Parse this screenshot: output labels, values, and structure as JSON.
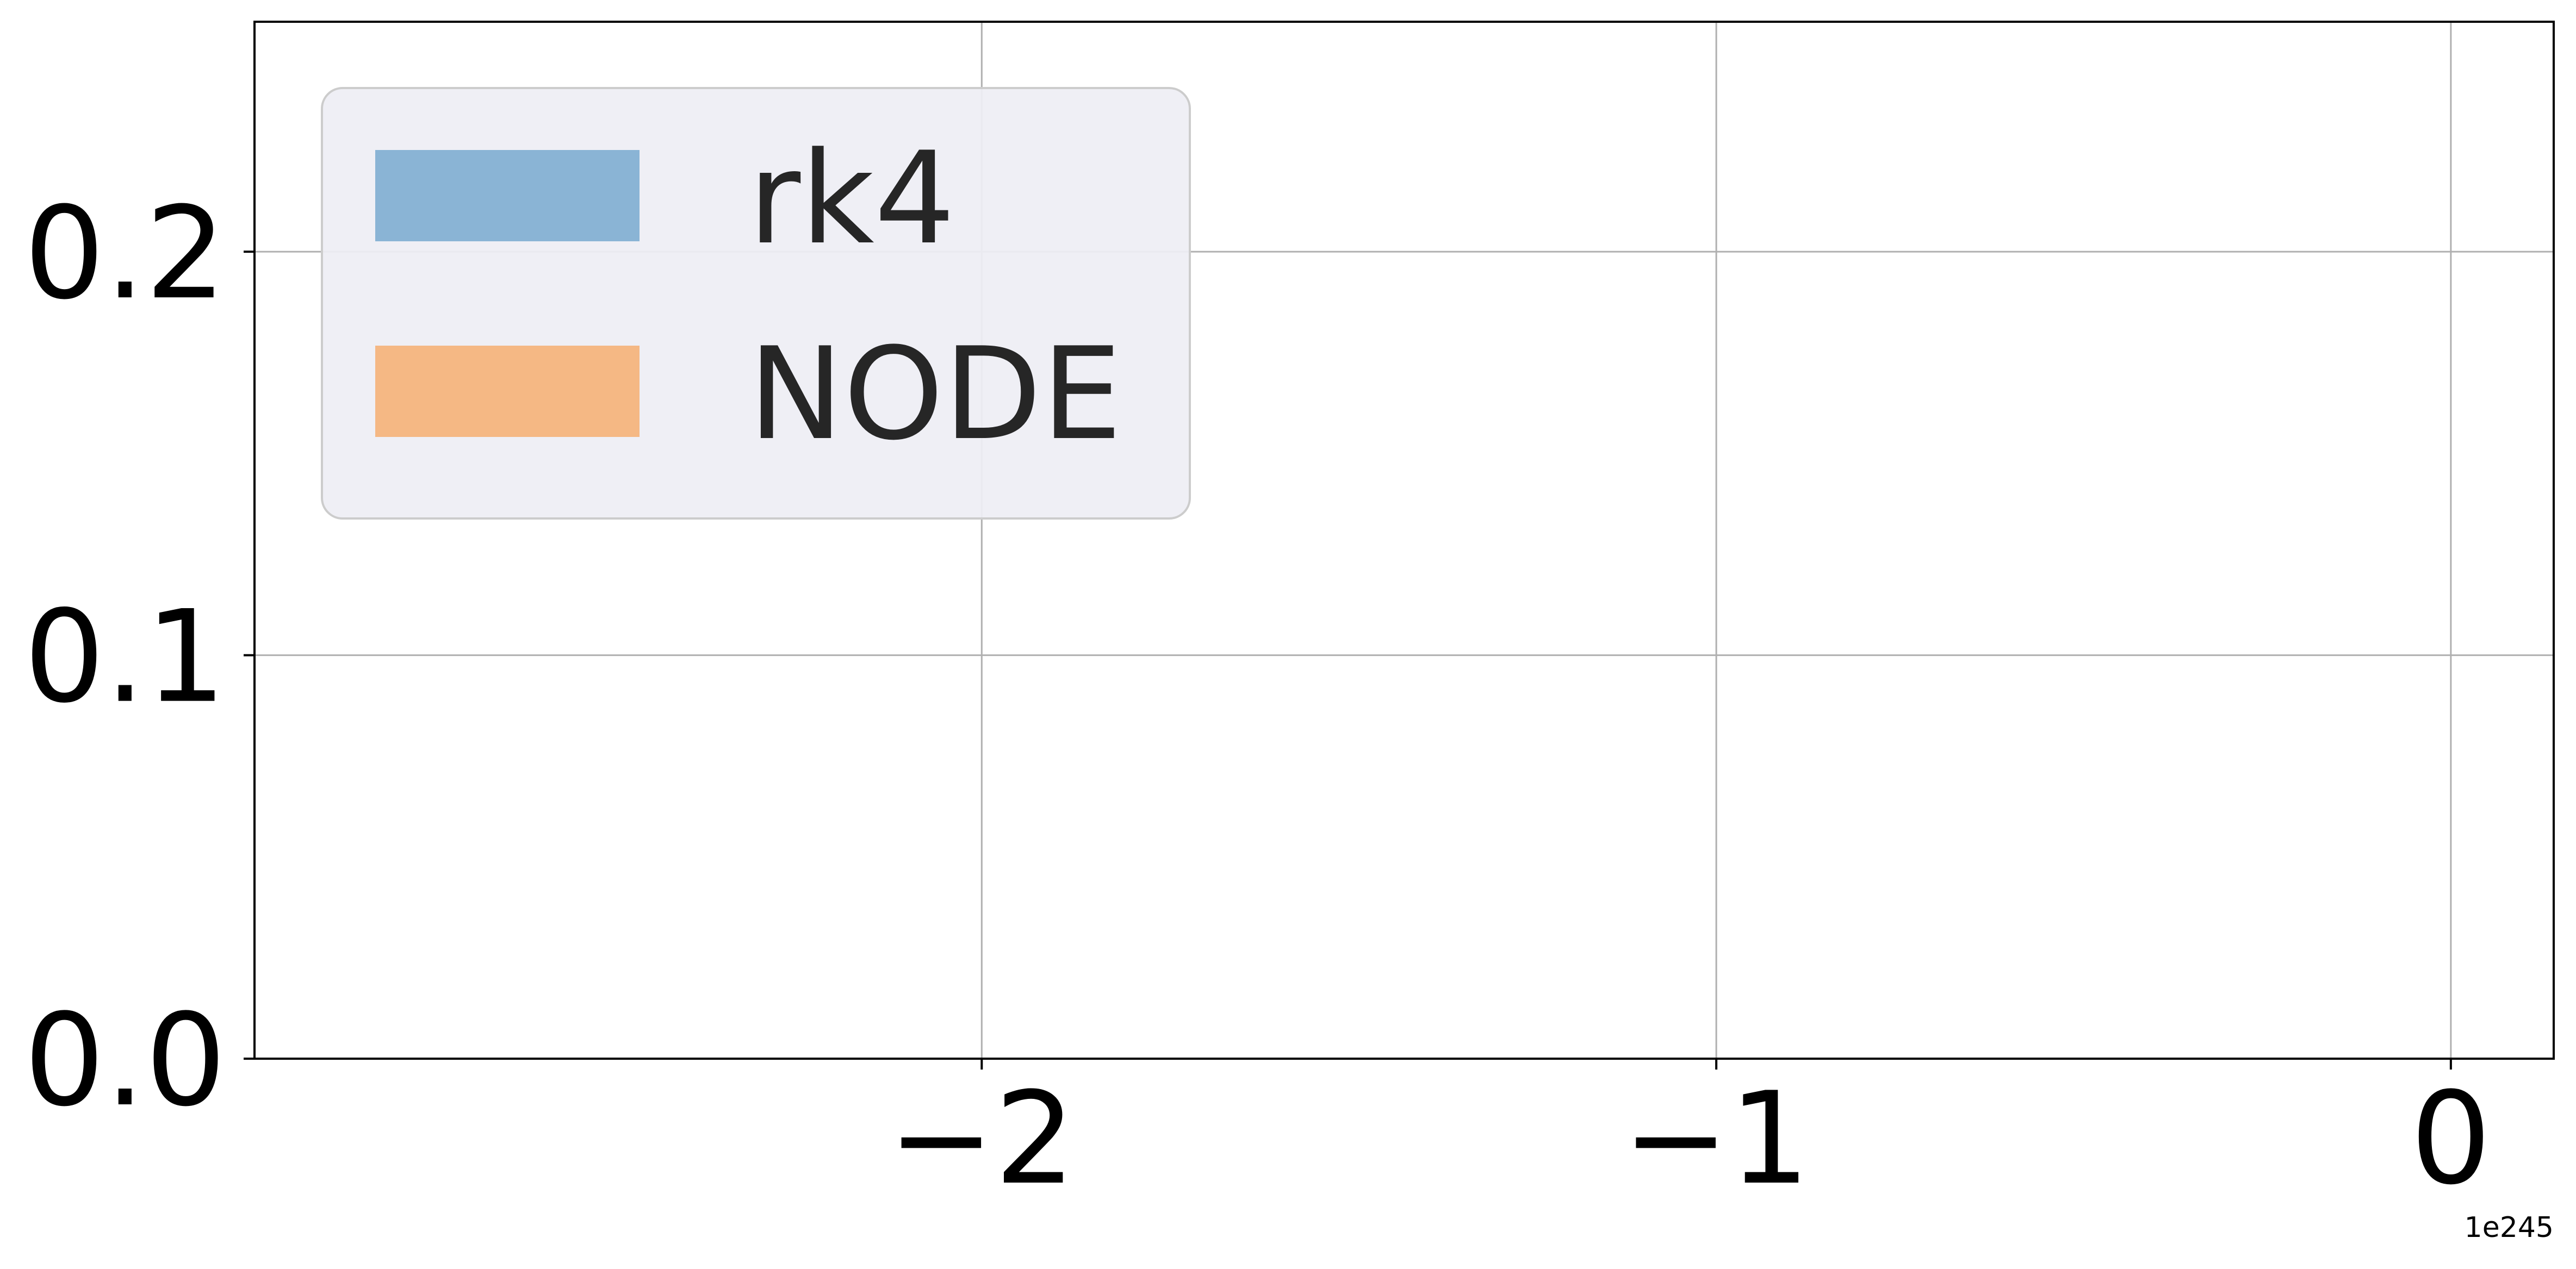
{
  "chart_data": {
    "type": "histogram",
    "title": "",
    "xlabel": "",
    "ylabel": "",
    "x_offset_label": "1e245",
    "xlim": [
      -2.99,
      0.14
    ],
    "ylim": [
      0,
      0.257
    ],
    "xticks": [
      {
        "value": -2,
        "label": "−2"
      },
      {
        "value": -1,
        "label": "−1"
      },
      {
        "value": 0,
        "label": "0"
      }
    ],
    "yticks": [
      {
        "value": 0.0,
        "label": "0.0"
      },
      {
        "value": 0.1,
        "label": "0.1"
      },
      {
        "value": 0.2,
        "label": "0.2"
      }
    ],
    "grid": true,
    "legend": {
      "placement": "upper-left",
      "entries": [
        {
          "name": "rk4",
          "color": "#8ab4d5"
        },
        {
          "name": "NODE",
          "color": "#f5b884"
        }
      ]
    },
    "series": [
      {
        "name": "rk4",
        "color": "#8ab4d5",
        "values": []
      },
      {
        "name": "NODE",
        "color": "#f5b884",
        "values": []
      }
    ]
  }
}
